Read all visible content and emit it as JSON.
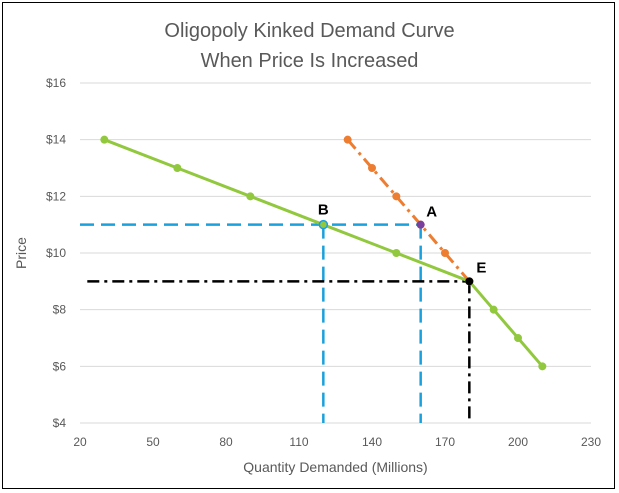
{
  "chart_data": {
    "type": "line",
    "title": "Oligopoly Kinked Demand Curve",
    "subtitle": "When Price Is Increased",
    "xlabel": "Quantity Demanded (Millions)",
    "ylabel": "Price",
    "xlim": [
      20,
      230
    ],
    "ylim": [
      4,
      16
    ],
    "x_ticks": [
      20,
      50,
      80,
      110,
      140,
      170,
      200,
      230
    ],
    "y_ticks": [
      4,
      6,
      8,
      10,
      12,
      14,
      16
    ],
    "y_tick_labels": [
      "$4",
      "$6",
      "$8",
      "$10",
      "$12",
      "$14",
      "$16"
    ],
    "grid": "horizontal",
    "legend": "none",
    "series": [
      {
        "color": "#92c83e",
        "style": "solid",
        "points": [
          [
            30,
            14
          ],
          [
            60,
            13
          ],
          [
            90,
            12
          ],
          [
            120,
            11
          ],
          [
            150,
            10
          ],
          [
            180,
            9
          ],
          [
            190,
            8
          ],
          [
            200,
            7
          ],
          [
            210,
            6
          ]
        ]
      },
      {
        "color": "#ed7d31",
        "style": "dashdot",
        "points": [
          [
            130,
            14
          ],
          [
            140,
            13
          ],
          [
            150,
            12
          ],
          [
            160,
            11
          ],
          [
            170,
            10
          ],
          [
            180,
            9
          ]
        ]
      }
    ],
    "reference_lines": [
      {
        "color": "#1aa0dc",
        "style": "dashed",
        "points": [
          [
            20,
            11
          ],
          [
            160,
            11
          ]
        ]
      },
      {
        "color": "#1aa0dc",
        "style": "dashed",
        "points": [
          [
            120,
            11
          ],
          [
            120,
            4
          ]
        ]
      },
      {
        "color": "#1aa0dc",
        "style": "dashed",
        "points": [
          [
            160,
            11
          ],
          [
            160,
            4
          ]
        ]
      },
      {
        "color": "#000000",
        "style": "dashdot",
        "points": [
          [
            23,
            9
          ],
          [
            180,
            9
          ]
        ]
      },
      {
        "color": "#000000",
        "style": "dashdot",
        "points": [
          [
            180,
            9
          ],
          [
            180,
            4
          ]
        ]
      }
    ],
    "annotations": [
      {
        "text": "B",
        "x": 120,
        "y": 11
      },
      {
        "text": "A",
        "x": 160,
        "y": 11
      },
      {
        "text": "E",
        "x": 180,
        "y": 9
      }
    ]
  }
}
